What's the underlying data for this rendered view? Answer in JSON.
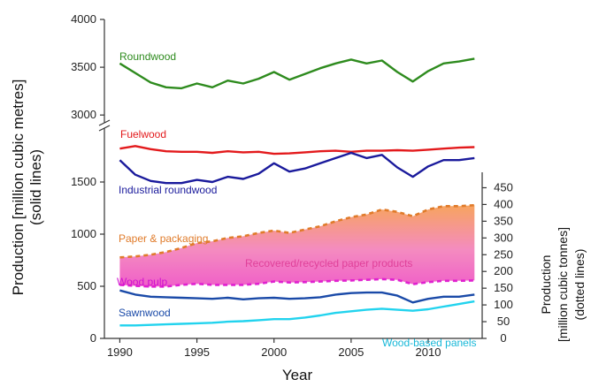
{
  "chart_data": {
    "type": "line",
    "xlabel": "Year",
    "ylabel_left": [
      "Production [million cubic metres]",
      "(solid lines)"
    ],
    "ylabel_right": [
      "Production",
      "[million cubic tonnes]",
      "(dotted lines)"
    ],
    "xlim": [
      1989,
      2013.5
    ],
    "x_ticks": [
      1990,
      1995,
      2000,
      2005,
      2010
    ],
    "left_axis_lower": {
      "ylim": [
        0,
        2000
      ],
      "ticks": [
        0,
        500,
        1000,
        1500
      ]
    },
    "left_axis_upper": {
      "ylim": [
        2900,
        4000
      ],
      "ticks": [
        3000,
        3500,
        4000
      ]
    },
    "right_axis": {
      "ylim": [
        0,
        475
      ],
      "ticks": [
        0,
        50,
        100,
        150,
        200,
        250,
        300,
        350,
        400,
        450
      ]
    },
    "years": [
      1990,
      1991,
      1992,
      1993,
      1994,
      1995,
      1996,
      1997,
      1998,
      1999,
      2000,
      2001,
      2002,
      2003,
      2004,
      2005,
      2006,
      2007,
      2008,
      2009,
      2010,
      2011,
      2012,
      2013
    ],
    "series": [
      {
        "name": "Roundwood",
        "axis": "left_upper",
        "style": "solid",
        "color": "#2e8b1e",
        "values": [
          3540,
          3440,
          3340,
          3290,
          3280,
          3330,
          3290,
          3360,
          3330,
          3380,
          3450,
          3370,
          3430,
          3490,
          3540,
          3580,
          3540,
          3570,
          3450,
          3350,
          3460,
          3540,
          3560,
          3590
        ]
      },
      {
        "name": "Fuelwood",
        "axis": "left_lower",
        "style": "solid",
        "color": "#e31a1c",
        "values": [
          1820,
          1845,
          1815,
          1795,
          1790,
          1790,
          1780,
          1795,
          1785,
          1790,
          1770,
          1775,
          1785,
          1795,
          1800,
          1790,
          1800,
          1800,
          1805,
          1800,
          1810,
          1820,
          1830,
          1835
        ]
      },
      {
        "name": "Industrial roundwood",
        "axis": "left_lower",
        "style": "solid",
        "color": "#1a1a9c",
        "values": [
          1710,
          1570,
          1510,
          1490,
          1490,
          1520,
          1500,
          1550,
          1530,
          1580,
          1680,
          1600,
          1630,
          1680,
          1730,
          1780,
          1730,
          1760,
          1640,
          1550,
          1650,
          1710,
          1710,
          1730
        ]
      },
      {
        "name": "Sawnwood",
        "axis": "left_lower",
        "style": "solid",
        "color": "#1a4aa8",
        "values": [
          460,
          420,
          400,
          395,
          390,
          385,
          380,
          390,
          375,
          385,
          390,
          380,
          385,
          395,
          420,
          435,
          440,
          440,
          410,
          345,
          380,
          400,
          400,
          420
        ]
      },
      {
        "name": "Wood-based panels",
        "axis": "left_lower",
        "style": "solid",
        "color": "#22d3ee",
        "values": [
          125,
          125,
          130,
          135,
          140,
          145,
          150,
          160,
          165,
          175,
          185,
          185,
          200,
          220,
          245,
          260,
          275,
          285,
          275,
          265,
          280,
          305,
          330,
          355
        ]
      },
      {
        "name": "Paper & packaging",
        "axis": "right",
        "style": "dotted",
        "color": "#e07b2a",
        "values": [
          242,
          245,
          250,
          258,
          270,
          285,
          290,
          300,
          305,
          315,
          322,
          315,
          325,
          335,
          350,
          362,
          370,
          385,
          378,
          365,
          385,
          395,
          395,
          398
        ]
      },
      {
        "name": "Wood pulp",
        "axis": "right",
        "style": "dotted",
        "color": "#e020d0",
        "values": [
          160,
          157,
          155,
          155,
          160,
          163,
          160,
          160,
          160,
          163,
          170,
          167,
          168,
          170,
          172,
          173,
          175,
          177,
          175,
          162,
          168,
          172,
          172,
          173
        ]
      }
    ],
    "area_label": "Recovered/recycled paper products",
    "area_colors": [
      "#f7a45f",
      "#f48bc0",
      "#f060c8"
    ]
  }
}
